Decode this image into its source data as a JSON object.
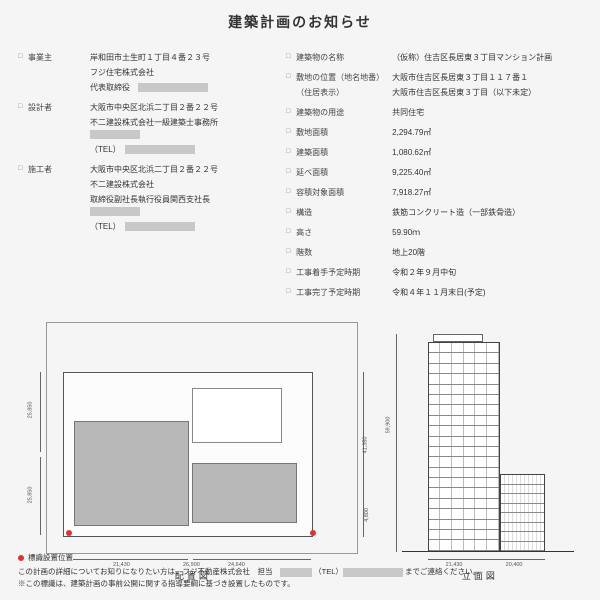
{
  "title": "建築計画のお知らせ",
  "left": [
    {
      "label": "事業主",
      "values": [
        "岸和田市土生町１丁目４番２３号",
        "フジ住宅株式会社",
        "代表取締役　"
      ],
      "redact_after": 2
    },
    {
      "label": "設計者",
      "values": [
        "大阪市中央区北浜二丁目２番２２号",
        "不二建設株式会社一級建築士事務所　",
        "（TEL）　"
      ],
      "redact_after": 1
    },
    {
      "label": "施工者",
      "values": [
        "大阪市中央区北浜二丁目２番２２号",
        "不二建設株式会社",
        "取締役副社長執行役員関西支社長　",
        "（TEL）　"
      ],
      "redact_after": 2
    }
  ],
  "right": [
    {
      "label": "建築物の名称",
      "value": "（仮称）住吉区長居東３丁目マンション計画"
    },
    {
      "label": "敷地の位置（地名地番）\n（住居表示）",
      "value": "大阪市住吉区長居東３丁目１１７番１\n大阪市住吉区長居東３丁目（以下未定）"
    },
    {
      "label": "建築物の用途",
      "value": "共同住宅"
    },
    {
      "label": "敷地面積",
      "value": "2,294.79㎡"
    },
    {
      "label": "建築面積",
      "value": "1,080.62㎡"
    },
    {
      "label": "延べ面積",
      "value": "9,225.40㎡"
    },
    {
      "label": "容積対象面積",
      "value": "7,918.27㎡"
    },
    {
      "label": "構造",
      "value": "鉄筋コンクリート造（一部鉄骨造）"
    },
    {
      "label": "高さ",
      "value": "59.90ｍ"
    },
    {
      "label": "階数",
      "value": "地上20階"
    },
    {
      "label": "工事着手予定時期",
      "value": "令和２年９月中旬"
    },
    {
      "label": "工事完了予定時期",
      "value": "令和４年１１月末日(予定)"
    }
  ],
  "siteplan": {
    "label": "配置図",
    "dims": {
      "w1": "21,430",
      "w2": "24,640",
      "w3": "26,900",
      "h1": "25,850",
      "h2": "4,800",
      "h3": "25,850",
      "h4": "41,350"
    }
  },
  "elevation": {
    "label": "立面図",
    "floors": 20,
    "low_floors": 8,
    "h_label": "59,900",
    "w1": "21,430",
    "w2": "20,400"
  },
  "footer": {
    "legend": "標識設置位置",
    "line1_a": "この計画の詳細についてお知りになりたい方は、フジ不動産株式会社　担当　",
    "line1_b": "（TEL）",
    "line1_c": "までご連絡ください。",
    "line2": "※この標識は、建築計画の事前公開に関する指導要綱に基づき設置したものです。"
  }
}
